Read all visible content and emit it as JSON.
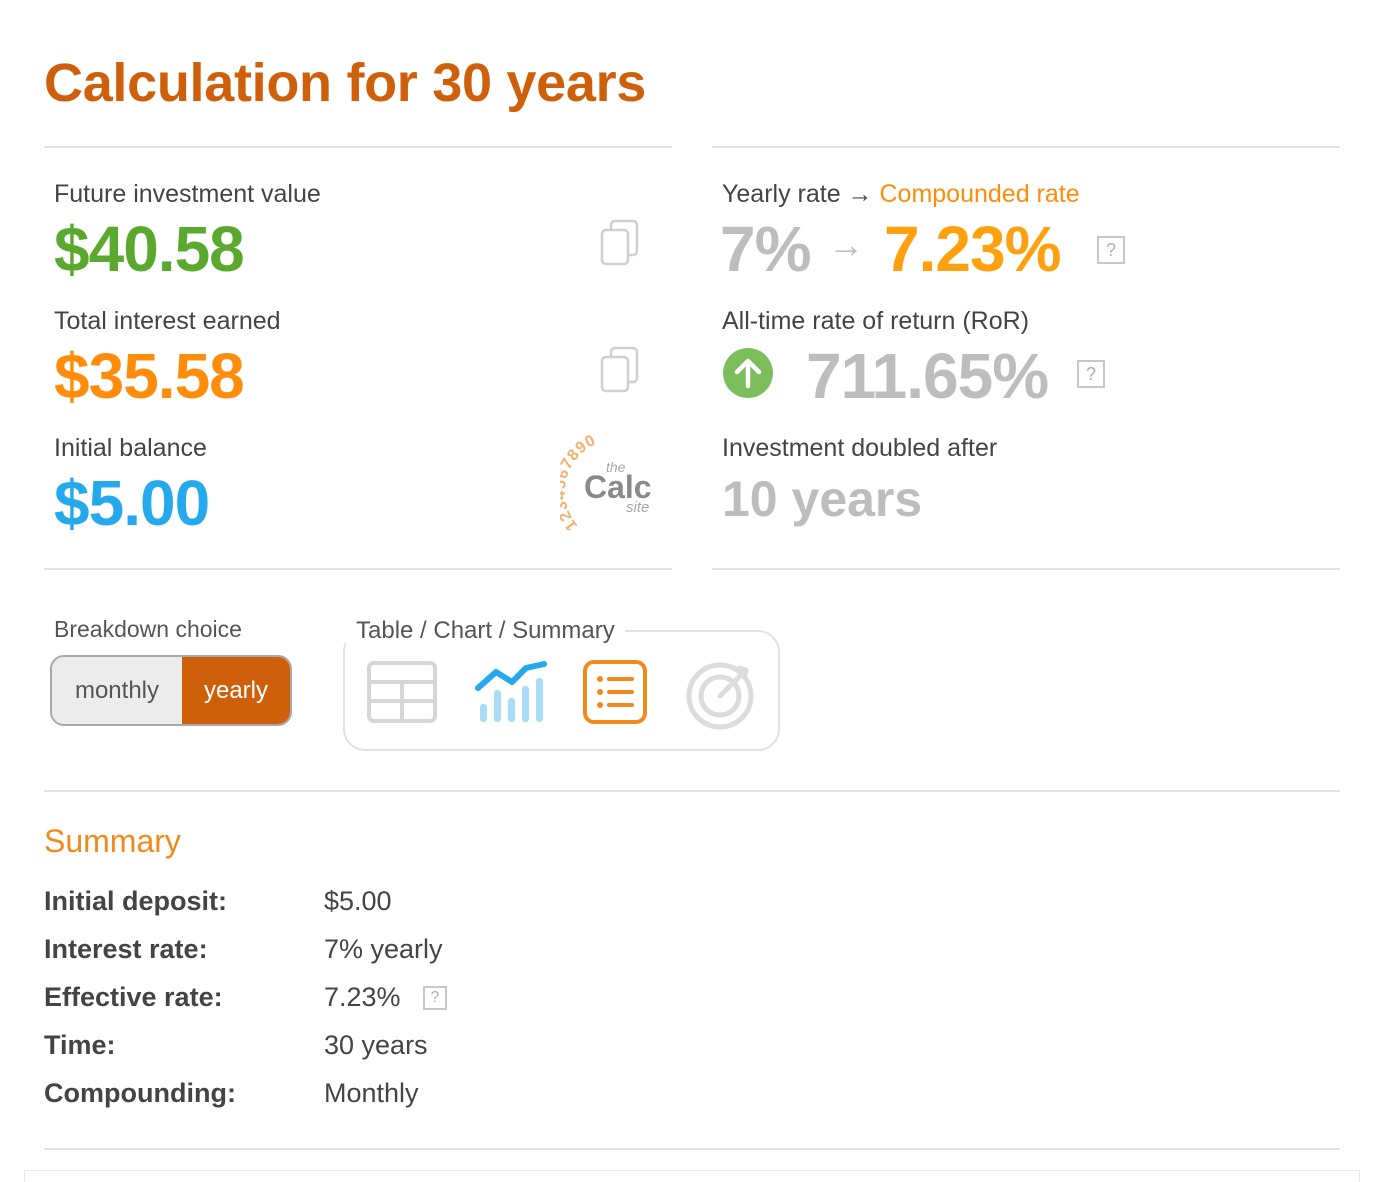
{
  "title": "Calculation for 30 years",
  "left": {
    "future_label": "Future investment value",
    "future_value": "$40.58",
    "interest_label": "Total interest earned",
    "interest_value": "$35.58",
    "initial_label": "Initial balance",
    "initial_value": "$5.00"
  },
  "logo": {
    "digits": "1234567890",
    "the": "the",
    "calc": "Calc",
    "site": "site"
  },
  "right": {
    "rate_label_prefix": "Yearly rate →",
    "rate_label_highlight": "Compounded rate",
    "yearly_rate": "7%",
    "compounded_rate": "7.23%",
    "ror_label": "All-time rate of return (RoR)",
    "ror_value": "711.65%",
    "doubled_label": "Investment doubled after",
    "doubled_value": "10 years",
    "help_glyph": "?"
  },
  "breakdown": {
    "label": "Breakdown choice",
    "options": [
      "monthly",
      "yearly"
    ],
    "selected": "yearly"
  },
  "views": {
    "legend": "Table / Chart / Summary",
    "items": [
      "table-icon",
      "chart-icon",
      "summary-icon",
      "goal-icon"
    ],
    "active": "summary-icon"
  },
  "summary": {
    "title": "Summary",
    "rows": [
      {
        "key": "Initial deposit:",
        "value": "$5.00"
      },
      {
        "key": "Interest rate:",
        "value": "7% yearly"
      },
      {
        "key": "Effective rate:",
        "value": "7.23%"
      },
      {
        "key": "Time:",
        "value": "30 years"
      },
      {
        "key": "Compounding:",
        "value": "Monthly"
      }
    ]
  },
  "colors": {
    "title": "#cf600b",
    "future": "#5aa82e",
    "interest": "#ff8c0a",
    "initial": "#25a9ec",
    "compounded": "#ffa10f",
    "muted_value": "#bdbdbd",
    "ror_up": "#7cbd5c"
  }
}
